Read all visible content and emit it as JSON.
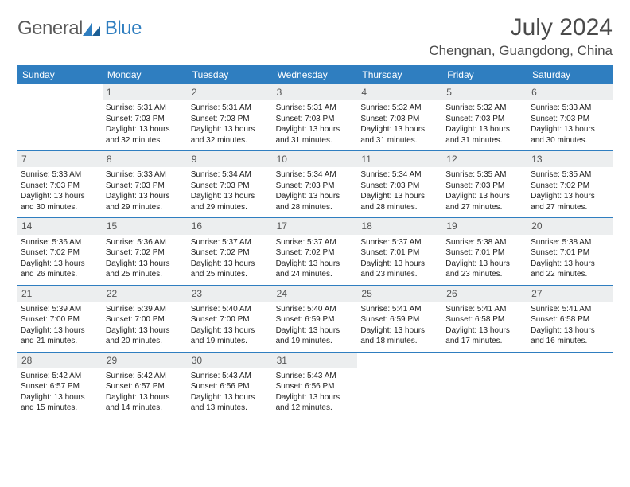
{
  "logo": {
    "text1": "General",
    "text2": "Blue"
  },
  "title": "July 2024",
  "location": "Chengnan, Guangdong, China",
  "colors": {
    "header_bg": "#2f7ec0",
    "header_fg": "#ffffff",
    "daybar_bg": "#eceeef",
    "text": "#222222",
    "divider": "#2f7ec0"
  },
  "weekdays": [
    "Sunday",
    "Monday",
    "Tuesday",
    "Wednesday",
    "Thursday",
    "Friday",
    "Saturday"
  ],
  "weeks": [
    [
      {
        "num": "",
        "sunrise": "",
        "sunset": "",
        "daylight": ""
      },
      {
        "num": "1",
        "sunrise": "5:31 AM",
        "sunset": "7:03 PM",
        "daylight": "13 hours and 32 minutes."
      },
      {
        "num": "2",
        "sunrise": "5:31 AM",
        "sunset": "7:03 PM",
        "daylight": "13 hours and 32 minutes."
      },
      {
        "num": "3",
        "sunrise": "5:31 AM",
        "sunset": "7:03 PM",
        "daylight": "13 hours and 31 minutes."
      },
      {
        "num": "4",
        "sunrise": "5:32 AM",
        "sunset": "7:03 PM",
        "daylight": "13 hours and 31 minutes."
      },
      {
        "num": "5",
        "sunrise": "5:32 AM",
        "sunset": "7:03 PM",
        "daylight": "13 hours and 31 minutes."
      },
      {
        "num": "6",
        "sunrise": "5:33 AM",
        "sunset": "7:03 PM",
        "daylight": "13 hours and 30 minutes."
      }
    ],
    [
      {
        "num": "7",
        "sunrise": "5:33 AM",
        "sunset": "7:03 PM",
        "daylight": "13 hours and 30 minutes."
      },
      {
        "num": "8",
        "sunrise": "5:33 AM",
        "sunset": "7:03 PM",
        "daylight": "13 hours and 29 minutes."
      },
      {
        "num": "9",
        "sunrise": "5:34 AM",
        "sunset": "7:03 PM",
        "daylight": "13 hours and 29 minutes."
      },
      {
        "num": "10",
        "sunrise": "5:34 AM",
        "sunset": "7:03 PM",
        "daylight": "13 hours and 28 minutes."
      },
      {
        "num": "11",
        "sunrise": "5:34 AM",
        "sunset": "7:03 PM",
        "daylight": "13 hours and 28 minutes."
      },
      {
        "num": "12",
        "sunrise": "5:35 AM",
        "sunset": "7:03 PM",
        "daylight": "13 hours and 27 minutes."
      },
      {
        "num": "13",
        "sunrise": "5:35 AM",
        "sunset": "7:02 PM",
        "daylight": "13 hours and 27 minutes."
      }
    ],
    [
      {
        "num": "14",
        "sunrise": "5:36 AM",
        "sunset": "7:02 PM",
        "daylight": "13 hours and 26 minutes."
      },
      {
        "num": "15",
        "sunrise": "5:36 AM",
        "sunset": "7:02 PM",
        "daylight": "13 hours and 25 minutes."
      },
      {
        "num": "16",
        "sunrise": "5:37 AM",
        "sunset": "7:02 PM",
        "daylight": "13 hours and 25 minutes."
      },
      {
        "num": "17",
        "sunrise": "5:37 AM",
        "sunset": "7:02 PM",
        "daylight": "13 hours and 24 minutes."
      },
      {
        "num": "18",
        "sunrise": "5:37 AM",
        "sunset": "7:01 PM",
        "daylight": "13 hours and 23 minutes."
      },
      {
        "num": "19",
        "sunrise": "5:38 AM",
        "sunset": "7:01 PM",
        "daylight": "13 hours and 23 minutes."
      },
      {
        "num": "20",
        "sunrise": "5:38 AM",
        "sunset": "7:01 PM",
        "daylight": "13 hours and 22 minutes."
      }
    ],
    [
      {
        "num": "21",
        "sunrise": "5:39 AM",
        "sunset": "7:00 PM",
        "daylight": "13 hours and 21 minutes."
      },
      {
        "num": "22",
        "sunrise": "5:39 AM",
        "sunset": "7:00 PM",
        "daylight": "13 hours and 20 minutes."
      },
      {
        "num": "23",
        "sunrise": "5:40 AM",
        "sunset": "7:00 PM",
        "daylight": "13 hours and 19 minutes."
      },
      {
        "num": "24",
        "sunrise": "5:40 AM",
        "sunset": "6:59 PM",
        "daylight": "13 hours and 19 minutes."
      },
      {
        "num": "25",
        "sunrise": "5:41 AM",
        "sunset": "6:59 PM",
        "daylight": "13 hours and 18 minutes."
      },
      {
        "num": "26",
        "sunrise": "5:41 AM",
        "sunset": "6:58 PM",
        "daylight": "13 hours and 17 minutes."
      },
      {
        "num": "27",
        "sunrise": "5:41 AM",
        "sunset": "6:58 PM",
        "daylight": "13 hours and 16 minutes."
      }
    ],
    [
      {
        "num": "28",
        "sunrise": "5:42 AM",
        "sunset": "6:57 PM",
        "daylight": "13 hours and 15 minutes."
      },
      {
        "num": "29",
        "sunrise": "5:42 AM",
        "sunset": "6:57 PM",
        "daylight": "13 hours and 14 minutes."
      },
      {
        "num": "30",
        "sunrise": "5:43 AM",
        "sunset": "6:56 PM",
        "daylight": "13 hours and 13 minutes."
      },
      {
        "num": "31",
        "sunrise": "5:43 AM",
        "sunset": "6:56 PM",
        "daylight": "13 hours and 12 minutes."
      },
      {
        "num": "",
        "sunrise": "",
        "sunset": "",
        "daylight": ""
      },
      {
        "num": "",
        "sunrise": "",
        "sunset": "",
        "daylight": ""
      },
      {
        "num": "",
        "sunrise": "",
        "sunset": "",
        "daylight": ""
      }
    ]
  ],
  "labels": {
    "sunrise_prefix": "Sunrise: ",
    "sunset_prefix": "Sunset: ",
    "daylight_prefix": "Daylight: "
  }
}
